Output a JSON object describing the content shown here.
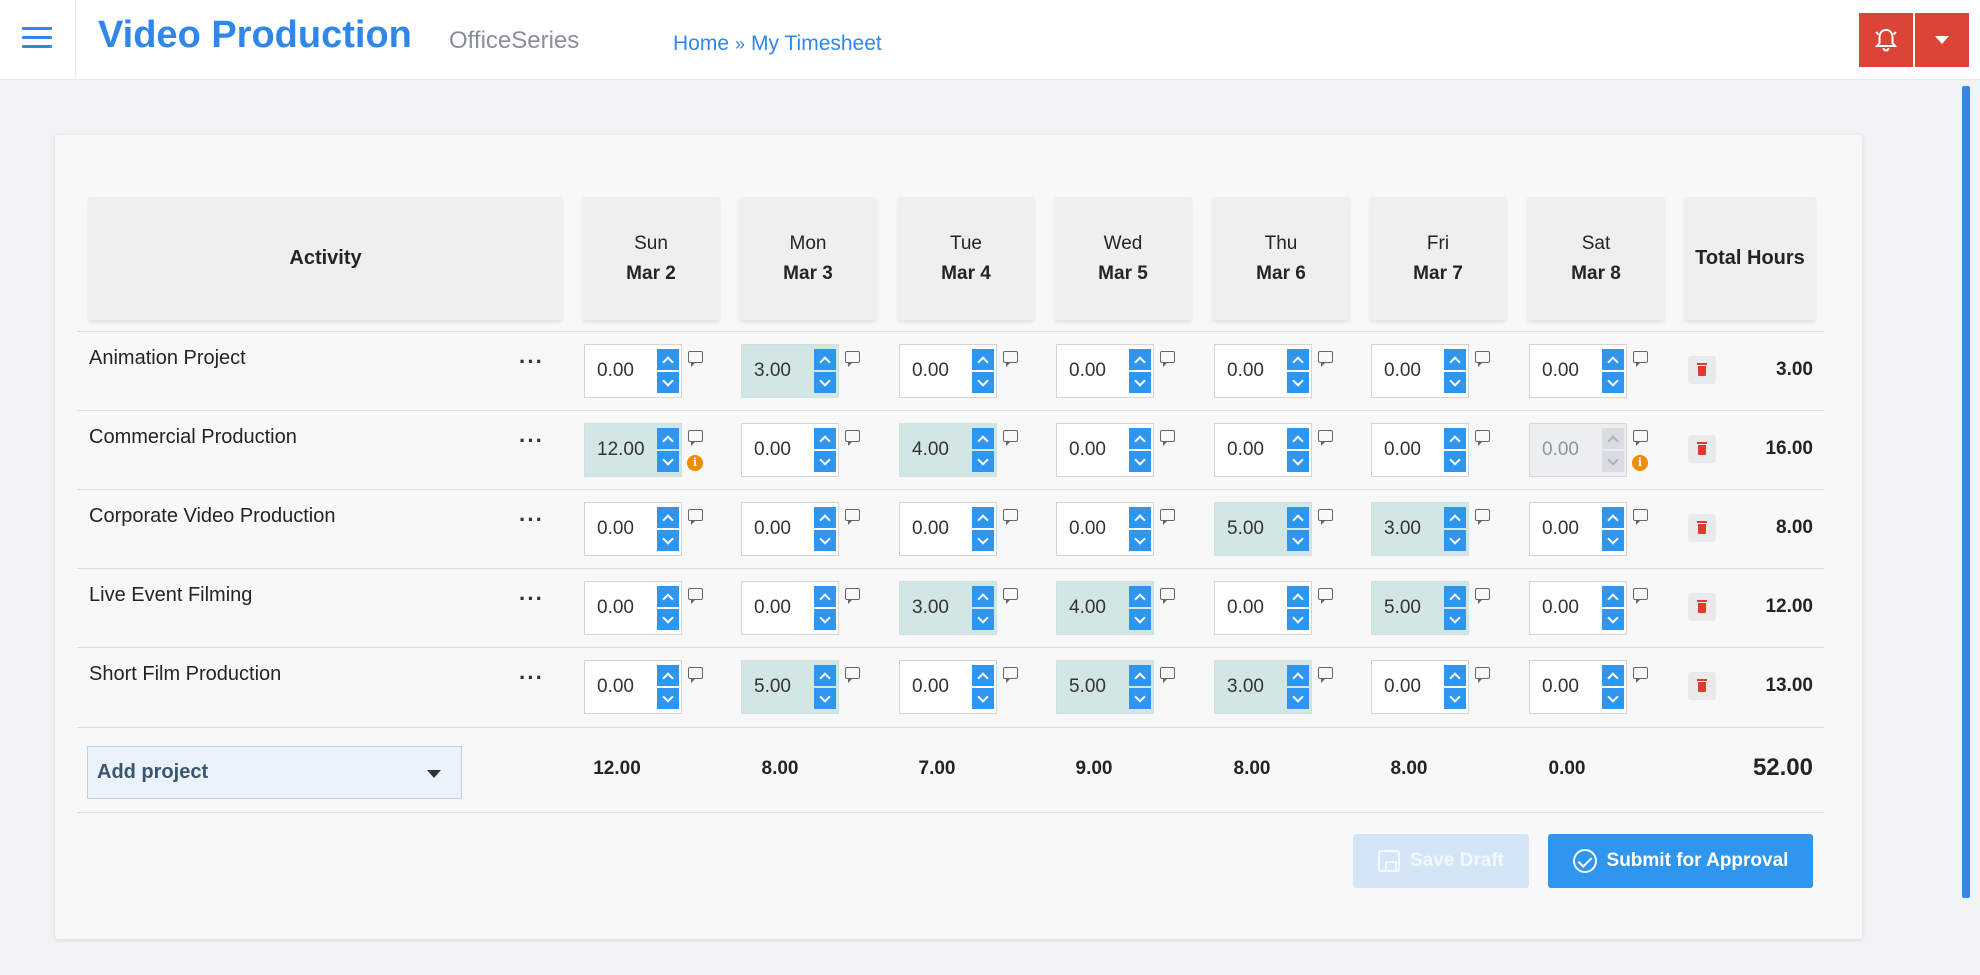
{
  "header": {
    "brand": "Video Production",
    "suite": "OfficeSeries",
    "breadcrumb": [
      "Home",
      "My Timesheet"
    ],
    "breadcrumb_separator": "»",
    "accent_color": "#2f86eb",
    "alert_color": "#db4437",
    "icons": [
      "menu-icon",
      "bell-icon",
      "caret-down-icon"
    ]
  },
  "table": {
    "activity_header": "Activity",
    "total_header": "Total Hours",
    "days": [
      {
        "day": "Sun",
        "date": "Mar 2"
      },
      {
        "day": "Mon",
        "date": "Mar 3"
      },
      {
        "day": "Tue",
        "date": "Mar 4"
      },
      {
        "day": "Wed",
        "date": "Mar 5"
      },
      {
        "day": "Thu",
        "date": "Mar 6"
      },
      {
        "day": "Fri",
        "date": "Mar 7"
      },
      {
        "day": "Sat",
        "date": "Mar 8"
      }
    ],
    "rows": [
      {
        "name": "Animation Project",
        "more": "···",
        "hours": [
          "0.00",
          "3.00",
          "0.00",
          "0.00",
          "0.00",
          "0.00",
          "0.00"
        ],
        "highlighted": [
          false,
          true,
          false,
          false,
          false,
          false,
          false
        ],
        "total": "3.00"
      },
      {
        "name": "Commercial Production",
        "more": "···",
        "hours": [
          "12.00",
          "0.00",
          "4.00",
          "0.00",
          "0.00",
          "0.00",
          "0.00"
        ],
        "highlighted": [
          true,
          false,
          true,
          false,
          false,
          false,
          false
        ],
        "disabled": [
          false,
          false,
          false,
          false,
          false,
          false,
          true
        ],
        "info": [
          true,
          false,
          false,
          false,
          false,
          false,
          true
        ],
        "total": "16.00"
      },
      {
        "name": "Corporate Video Production",
        "more": "···",
        "hours": [
          "0.00",
          "0.00",
          "0.00",
          "0.00",
          "5.00",
          "3.00",
          "0.00"
        ],
        "highlighted": [
          false,
          false,
          false,
          false,
          true,
          true,
          false
        ],
        "total": "8.00"
      },
      {
        "name": "Live Event Filming",
        "more": "···",
        "hours": [
          "0.00",
          "0.00",
          "3.00",
          "4.00",
          "0.00",
          "5.00",
          "0.00"
        ],
        "highlighted": [
          false,
          false,
          true,
          true,
          false,
          true,
          false
        ],
        "total": "12.00"
      },
      {
        "name": "Short Film Production",
        "more": "···",
        "hours": [
          "0.00",
          "5.00",
          "0.00",
          "5.00",
          "3.00",
          "0.00",
          "0.00"
        ],
        "highlighted": [
          false,
          true,
          false,
          true,
          true,
          false,
          false
        ],
        "total": "13.00"
      }
    ],
    "day_totals": [
      "12.00",
      "8.00",
      "7.00",
      "9.00",
      "8.00",
      "8.00",
      "0.00"
    ],
    "grand_total": "52.00",
    "info_glyph": "i"
  },
  "add_project": {
    "label": "Add project"
  },
  "actions": {
    "save_draft": "Save Draft",
    "save_draft_disabled": true,
    "submit": "Submit for Approval"
  }
}
